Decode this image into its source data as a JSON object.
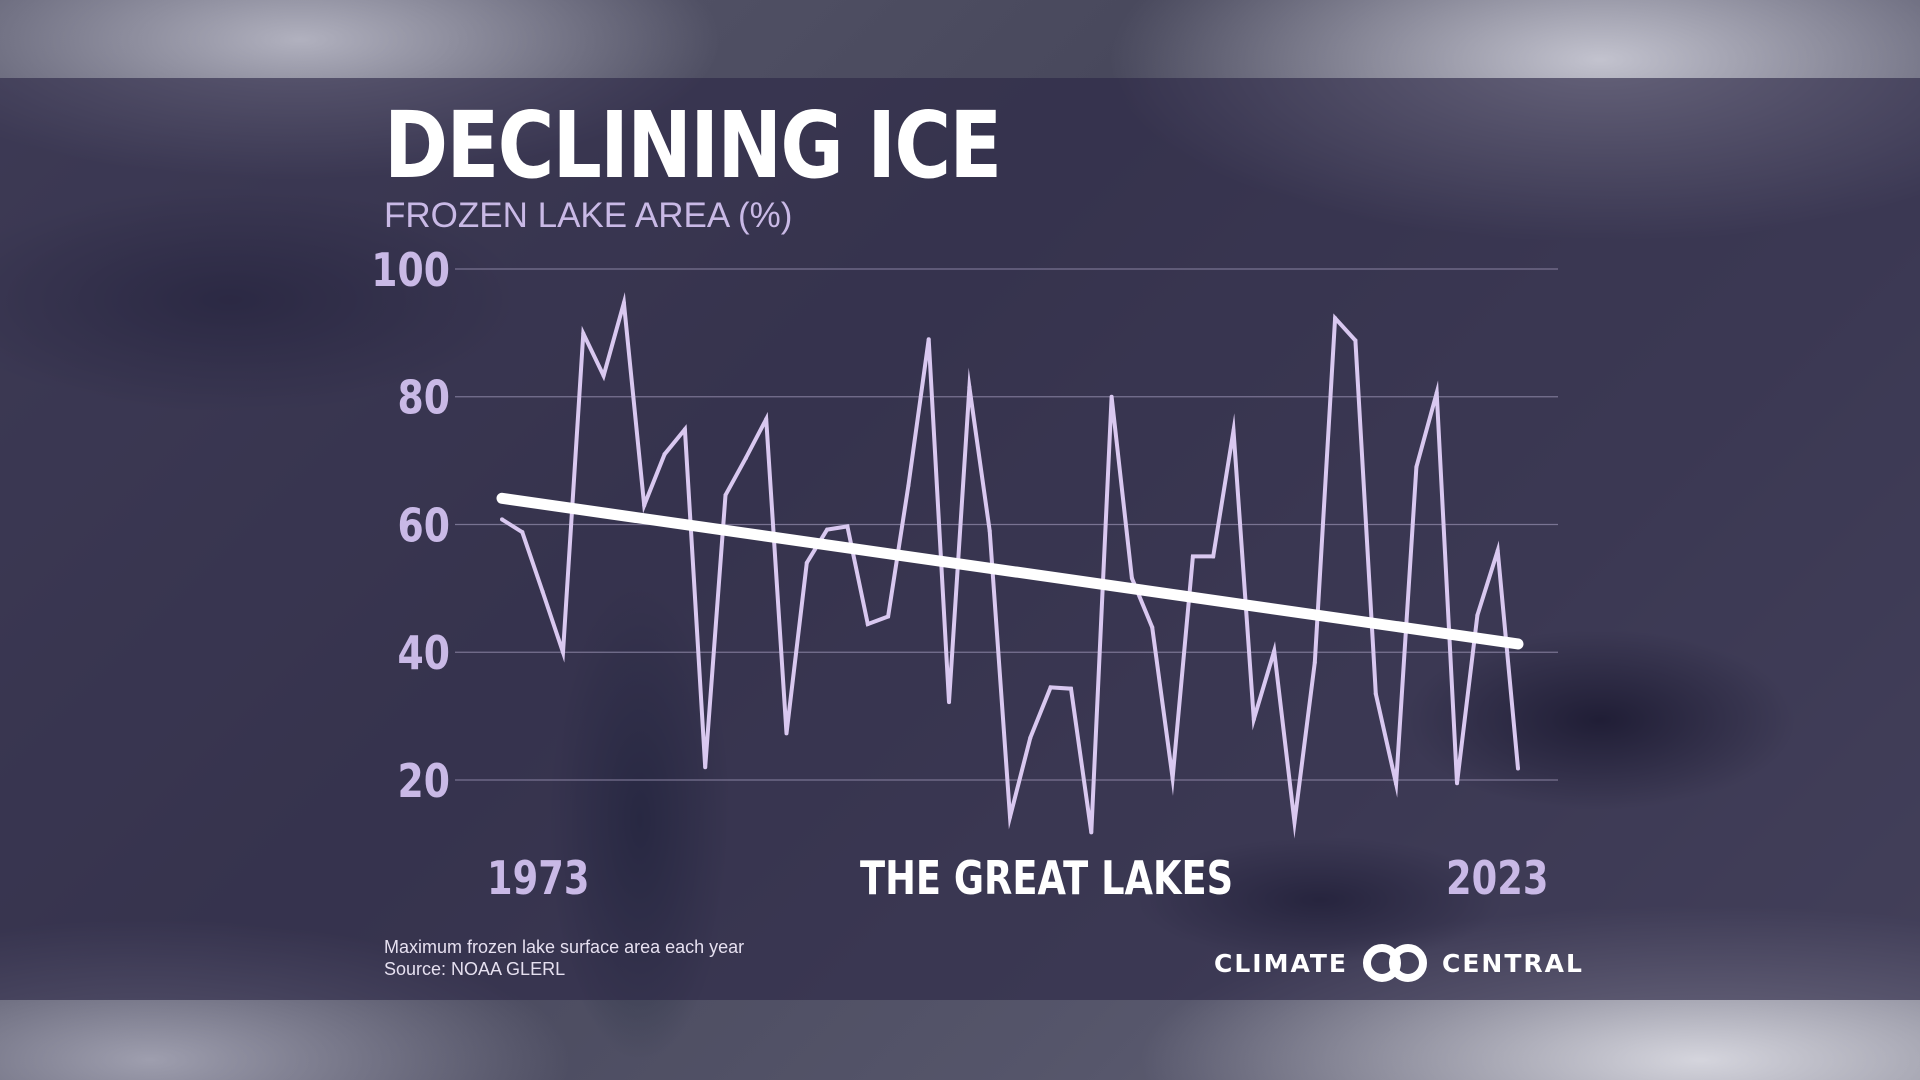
{
  "header": {
    "title": "DECLINING ICE",
    "subtitle": "FROZEN LAKE AREA (%)"
  },
  "labels": {
    "region": "THE GREAT LAKES",
    "year_start": "1973",
    "year_end": "2023"
  },
  "footer": {
    "note": "Maximum frozen lake surface area each year",
    "source": "Source: NOAA GLERL"
  },
  "logo": {
    "left_word": "CLIMATE",
    "right_word": "CENTRAL",
    "icon": "interlocking-rings-icon"
  },
  "colors": {
    "series": "#d9c8f0",
    "trend": "#ffffff",
    "axis_text": "#c9b9e6",
    "gridline": "#8f88a8"
  },
  "chart_data": {
    "type": "line",
    "title": "DECLINING ICE",
    "ylabel": "FROZEN LAKE AREA (%)",
    "xlabel": "",
    "ylim": [
      10,
      100
    ],
    "yticks": [
      20,
      40,
      60,
      80,
      100
    ],
    "xlim": [
      1973,
      2023
    ],
    "grid": true,
    "x": [
      1973,
      1974,
      1975,
      1976,
      1977,
      1978,
      1979,
      1980,
      1981,
      1982,
      1983,
      1984,
      1985,
      1986,
      1987,
      1988,
      1989,
      1990,
      1991,
      1992,
      1993,
      1994,
      1995,
      1996,
      1997,
      1998,
      1999,
      2000,
      2001,
      2002,
      2003,
      2004,
      2005,
      2006,
      2007,
      2008,
      2009,
      2010,
      2011,
      2012,
      2013,
      2014,
      2015,
      2016,
      2017,
      2018,
      2019,
      2020,
      2021,
      2022,
      2023
    ],
    "series": [
      {
        "values": [
          60.8,
          58.8,
          49.5,
          40.0,
          89.9,
          83.3,
          94.7,
          63.0,
          71.0,
          74.9,
          22.0,
          64.6,
          70.4,
          76.5,
          27.3,
          54.0,
          59.2,
          59.7,
          44.4,
          45.6,
          66.1,
          89.0,
          32.2,
          81.5,
          59.0,
          14.2,
          26.6,
          34.5,
          34.3,
          11.8,
          80.0,
          51.6,
          43.9,
          20.3,
          55.0,
          55.0,
          74.7,
          29.5,
          40.2,
          13.4,
          38.4,
          92.3,
          88.8,
          33.5,
          19.4,
          69.0,
          80.6,
          19.5,
          45.8,
          55.9,
          21.8
        ]
      }
    ],
    "trend": {
      "x": [
        1973,
        2023
      ],
      "y": [
        64.1,
        41.3
      ]
    }
  }
}
